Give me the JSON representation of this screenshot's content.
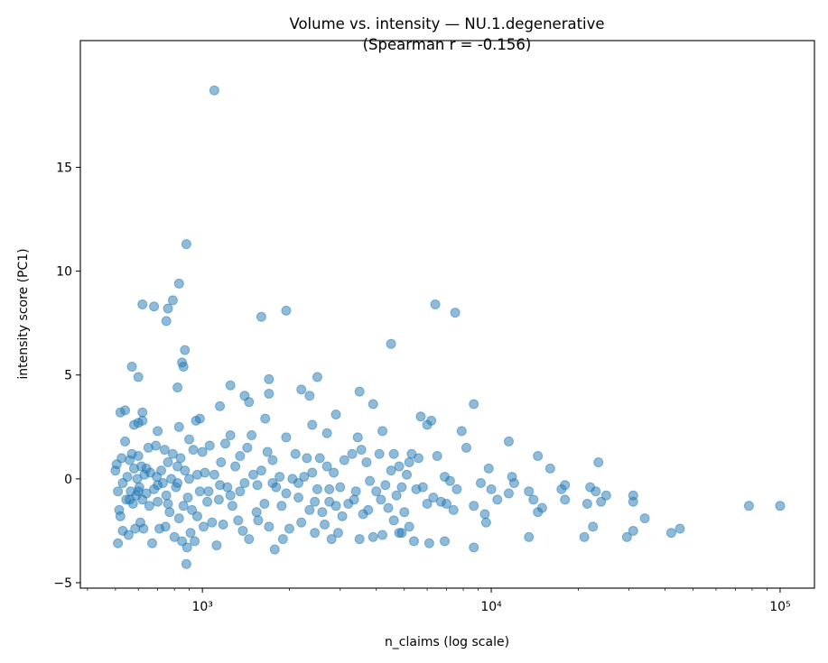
{
  "chart_data": {
    "type": "scatter",
    "title": [
      "Volume vs. intensity — NU.1.degenerative",
      "(Spearman r = -0.156)"
    ],
    "xlabel": "n_claims (log scale)",
    "ylabel": "intensity score (PC1)",
    "xscale": "log",
    "xlim": [
      378,
      131500
    ],
    "ylim": [
      -5.26,
      21.1
    ],
    "xticks": [
      {
        "value": 1000,
        "label": "10³"
      },
      {
        "value": 10000,
        "label": "10⁴"
      },
      {
        "value": 100000,
        "label": "10⁵"
      }
    ],
    "yticks": [
      {
        "value": -5,
        "label": "−5"
      },
      {
        "value": 0,
        "label": "0"
      },
      {
        "value": 5,
        "label": "5"
      },
      {
        "value": 10,
        "label": "10"
      },
      {
        "value": 15,
        "label": "15"
      }
    ],
    "grid": false,
    "marker_color": "#1f77b4",
    "marker_alpha": 0.5,
    "points": [
      [
        1100,
        18.7
      ],
      [
        880,
        11.3
      ],
      [
        830,
        9.4
      ],
      [
        790,
        8.6
      ],
      [
        620,
        8.4
      ],
      [
        680,
        8.3
      ],
      [
        760,
        8.2
      ],
      [
        750,
        7.6
      ],
      [
        1600,
        7.8
      ],
      [
        1950,
        8.1
      ],
      [
        6400,
        8.4
      ],
      [
        7500,
        8.0
      ],
      [
        870,
        6.2
      ],
      [
        850,
        5.6
      ],
      [
        860,
        5.4
      ],
      [
        570,
        5.4
      ],
      [
        600,
        4.9
      ],
      [
        820,
        4.4
      ],
      [
        4500,
        6.5
      ],
      [
        2500,
        4.9
      ],
      [
        1700,
        4.8
      ],
      [
        1250,
        4.5
      ],
      [
        1400,
        4.0
      ],
      [
        1450,
        3.7
      ],
      [
        1700,
        4.1
      ],
      [
        2200,
        4.3
      ],
      [
        2350,
        4.0
      ],
      [
        3500,
        4.2
      ],
      [
        3900,
        3.6
      ],
      [
        8700,
        3.6
      ],
      [
        1150,
        3.5
      ],
      [
        520,
        3.2
      ],
      [
        540,
        3.3
      ],
      [
        620,
        3.2
      ],
      [
        580,
        2.6
      ],
      [
        620,
        2.8
      ],
      [
        600,
        2.7
      ],
      [
        700,
        2.3
      ],
      [
        830,
        2.5
      ],
      [
        950,
        2.8
      ],
      [
        980,
        2.9
      ],
      [
        1650,
        2.9
      ],
      [
        2400,
        2.6
      ],
      [
        2900,
        3.1
      ],
      [
        5700,
        3.0
      ],
      [
        6000,
        2.6
      ],
      [
        6200,
        2.8
      ],
      [
        4200,
        2.3
      ],
      [
        7900,
        2.3
      ],
      [
        2700,
        2.2
      ],
      [
        11500,
        1.8
      ],
      [
        8200,
        1.5
      ],
      [
        14500,
        1.1
      ],
      [
        16000,
        0.5
      ],
      [
        23500,
        0.8
      ],
      [
        78000,
        -1.3
      ],
      [
        100000,
        -1.3
      ],
      [
        34000,
        -1.9
      ],
      [
        42000,
        -2.6
      ],
      [
        45000,
        -2.4
      ],
      [
        29500,
        -2.8
      ],
      [
        31000,
        -2.5
      ],
      [
        31000,
        -0.8
      ],
      [
        31000,
        -1.1
      ],
      [
        25000,
        -0.8
      ],
      [
        24000,
        -1.1
      ],
      [
        23000,
        -0.6
      ],
      [
        22500,
        -2.3
      ],
      [
        21000,
        -2.8
      ],
      [
        22000,
        -0.4
      ],
      [
        21500,
        -1.2
      ],
      [
        18000,
        -0.3
      ],
      [
        18000,
        -1.0
      ],
      [
        17500,
        -0.5
      ],
      [
        15000,
        -1.4
      ],
      [
        14000,
        -1.0
      ],
      [
        13500,
        -2.8
      ],
      [
        13500,
        -0.6
      ],
      [
        14500,
        -1.6
      ],
      [
        12000,
        -0.2
      ],
      [
        11800,
        0.1
      ],
      [
        11500,
        -0.7
      ],
      [
        10500,
        -1.0
      ],
      [
        10000,
        -0.5
      ],
      [
        9800,
        0.5
      ],
      [
        9500,
        -1.7
      ],
      [
        9600,
        -2.1
      ],
      [
        9200,
        -0.2
      ],
      [
        8700,
        -1.3
      ],
      [
        8700,
        -3.3
      ],
      [
        7600,
        -0.5
      ],
      [
        7400,
        -1.5
      ],
      [
        7000,
        -1.2
      ],
      [
        6900,
        0.1
      ],
      [
        7200,
        -0.1
      ],
      [
        6700,
        -1.1
      ],
      [
        6500,
        1.1
      ],
      [
        6900,
        -3.0
      ],
      [
        6100,
        -3.1
      ],
      [
        6000,
        -1.2
      ],
      [
        5600,
        1.0
      ],
      [
        5500,
        -0.5
      ],
      [
        5300,
        1.2
      ],
      [
        5200,
        0.8
      ],
      [
        5400,
        -3.0
      ],
      [
        5200,
        -2.3
      ],
      [
        4900,
        -2.6
      ],
      [
        4800,
        0.6
      ],
      [
        4600,
        1.2
      ],
      [
        500,
        0.4
      ],
      [
        505,
        0.7
      ],
      [
        510,
        -0.6
      ],
      [
        515,
        -1.5
      ],
      [
        510,
        -3.1
      ],
      [
        520,
        -1.8
      ],
      [
        525,
        1.0
      ],
      [
        530,
        -2.5
      ],
      [
        540,
        1.8
      ],
      [
        545,
        -1.0
      ],
      [
        550,
        0.1
      ],
      [
        555,
        -2.7
      ],
      [
        560,
        0.9
      ],
      [
        565,
        -0.6
      ],
      [
        570,
        1.2
      ],
      [
        575,
        -1.2
      ],
      [
        580,
        0.5
      ],
      [
        585,
        -2.4
      ],
      [
        590,
        -0.8
      ],
      [
        595,
        0.0
      ],
      [
        600,
        1.1
      ],
      [
        605,
        -0.4
      ],
      [
        610,
        -2.1
      ],
      [
        615,
        0.6
      ],
      [
        620,
        -1.0
      ],
      [
        625,
        -2.4
      ],
      [
        630,
        0.2
      ],
      [
        640,
        -0.7
      ],
      [
        650,
        1.5
      ],
      [
        655,
        -1.3
      ],
      [
        660,
        0.3
      ],
      [
        670,
        -3.1
      ],
      [
        680,
        -0.5
      ],
      [
        690,
        1.6
      ],
      [
        695,
        0.1
      ],
      [
        700,
        -1.1
      ],
      [
        710,
        -2.4
      ],
      [
        720,
        0.4
      ],
      [
        730,
        -0.2
      ],
      [
        740,
        1.4
      ],
      [
        745,
        -2.3
      ],
      [
        750,
        -0.8
      ],
      [
        760,
        0.8
      ],
      [
        770,
        -1.6
      ],
      [
        780,
        0.0
      ],
      [
        790,
        1.2
      ],
      [
        800,
        -2.8
      ],
      [
        810,
        -0.4
      ],
      [
        820,
        0.6
      ],
      [
        830,
        -1.9
      ],
      [
        840,
        1.0
      ],
      [
        850,
        -3.0
      ],
      [
        860,
        -1.3
      ],
      [
        870,
        0.4
      ],
      [
        880,
        -4.1
      ],
      [
        885,
        -3.3
      ],
      [
        890,
        -0.9
      ],
      [
        900,
        1.9
      ],
      [
        910,
        -2.6
      ],
      [
        920,
        -1.5
      ],
      [
        930,
        1.4
      ],
      [
        940,
        -3.0
      ],
      [
        960,
        0.2
      ],
      [
        980,
        -0.6
      ],
      [
        1000,
        1.3
      ],
      [
        1010,
        -2.3
      ],
      [
        1020,
        0.3
      ],
      [
        1040,
        -1.1
      ],
      [
        1060,
        1.6
      ],
      [
        1080,
        -2.1
      ],
      [
        1100,
        0.2
      ],
      [
        1120,
        -3.2
      ],
      [
        1140,
        -1.0
      ],
      [
        1160,
        0.8
      ],
      [
        1180,
        -2.2
      ],
      [
        1200,
        1.7
      ],
      [
        1220,
        -0.4
      ],
      [
        1250,
        2.1
      ],
      [
        1270,
        -1.3
      ],
      [
        1300,
        0.6
      ],
      [
        1330,
        -2.0
      ],
      [
        1350,
        1.1
      ],
      [
        1380,
        -2.5
      ],
      [
        1400,
        -0.2
      ],
      [
        1430,
        1.5
      ],
      [
        1450,
        -2.9
      ],
      [
        1480,
        2.1
      ],
      [
        1500,
        0.2
      ],
      [
        1540,
        -1.6
      ],
      [
        1560,
        -2.0
      ],
      [
        1600,
        0.4
      ],
      [
        1640,
        -1.2
      ],
      [
        1680,
        1.3
      ],
      [
        1700,
        -2.3
      ],
      [
        1750,
        0.9
      ],
      [
        1780,
        -3.4
      ],
      [
        1800,
        -0.4
      ],
      [
        1850,
        0.1
      ],
      [
        1880,
        -1.3
      ],
      [
        1900,
        -2.9
      ],
      [
        1950,
        2.0
      ],
      [
        2000,
        -2.4
      ],
      [
        2050,
        0.0
      ],
      [
        2100,
        1.2
      ],
      [
        2150,
        -0.9
      ],
      [
        2200,
        -2.1
      ],
      [
        2250,
        0.1
      ],
      [
        2300,
        1.0
      ],
      [
        2350,
        -1.5
      ],
      [
        2400,
        0.3
      ],
      [
        2450,
        -2.6
      ],
      [
        2500,
        -0.5
      ],
      [
        2550,
        1.0
      ],
      [
        2600,
        -1.6
      ],
      [
        2650,
        -2.2
      ],
      [
        2700,
        0.6
      ],
      [
        2750,
        -1.1
      ],
      [
        2800,
        -2.9
      ],
      [
        2850,
        0.3
      ],
      [
        2900,
        -1.3
      ],
      [
        2950,
        -2.6
      ],
      [
        3000,
        -0.4
      ],
      [
        3100,
        0.9
      ],
      [
        3200,
        -1.2
      ],
      [
        3300,
        1.2
      ],
      [
        3400,
        -0.6
      ],
      [
        3450,
        2.0
      ],
      [
        3500,
        -2.9
      ],
      [
        3550,
        1.4
      ],
      [
        3600,
        -1.7
      ],
      [
        3700,
        0.8
      ],
      [
        3800,
        -0.1
      ],
      [
        3900,
        -2.8
      ],
      [
        4000,
        -0.6
      ],
      [
        4100,
        1.2
      ],
      [
        4150,
        -1.0
      ],
      [
        4200,
        -2.7
      ],
      [
        4300,
        -0.3
      ],
      [
        4400,
        -1.4
      ],
      [
        4500,
        0.4
      ],
      [
        4600,
        -2.0
      ],
      [
        4700,
        -0.8
      ],
      [
        4800,
        -2.6
      ],
      [
        4900,
        -0.4
      ],
      [
        5000,
        -1.6
      ],
      [
        5100,
        0.2
      ],
      [
        5800,
        -0.4
      ],
      [
        6300,
        -0.9
      ],
      [
        530,
        -0.2
      ],
      [
        560,
        -1.0
      ],
      [
        600,
        -0.6
      ],
      [
        640,
        0.5
      ],
      [
        700,
        -0.3
      ],
      [
        760,
        -1.2
      ],
      [
        820,
        -0.2
      ],
      [
        900,
        0.0
      ],
      [
        960,
        -1.8
      ],
      [
        1050,
        -0.6
      ],
      [
        1150,
        -0.3
      ],
      [
        1250,
        -0.8
      ],
      [
        1350,
        -0.6
      ],
      [
        1550,
        -0.3
      ],
      [
        1750,
        -0.2
      ],
      [
        1950,
        -0.7
      ],
      [
        2150,
        -0.2
      ],
      [
        2450,
        -1.1
      ],
      [
        2750,
        -0.5
      ],
      [
        3050,
        -1.8
      ],
      [
        3350,
        -1.0
      ],
      [
        3750,
        -1.5
      ]
    ]
  }
}
